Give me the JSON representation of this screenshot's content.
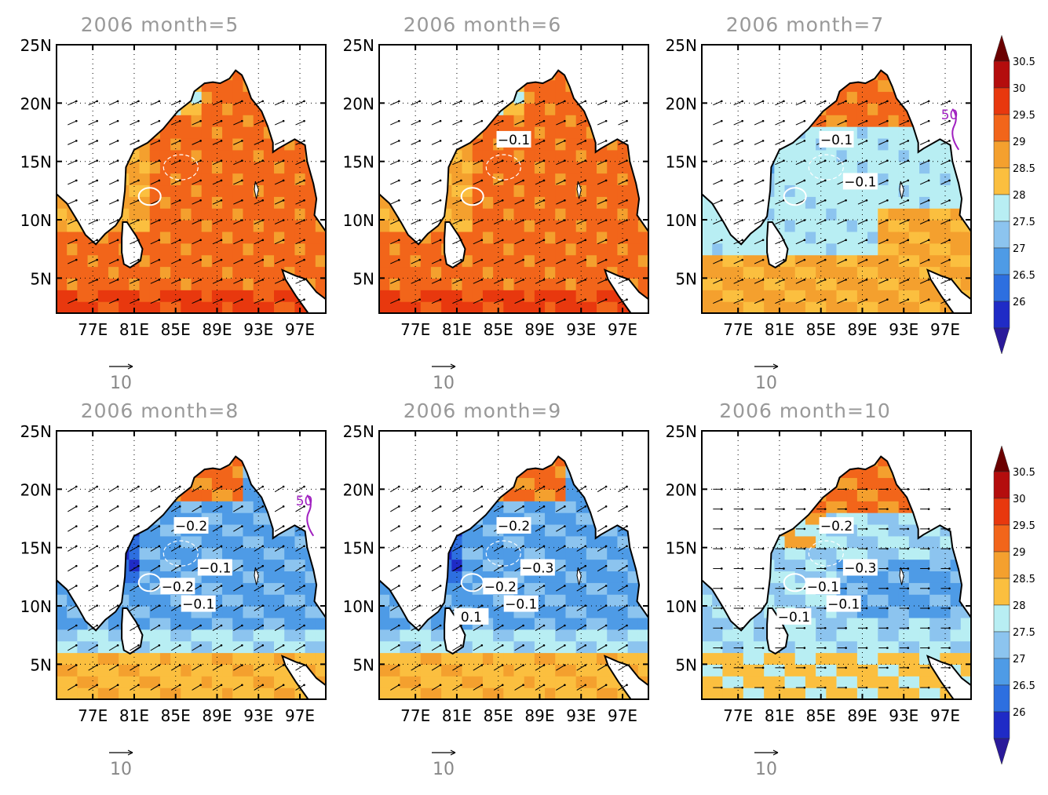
{
  "figure": {
    "panels": [
      {
        "title": "2006  month=5",
        "labels": [],
        "mode": "warm"
      },
      {
        "title": "2006  month=6",
        "labels": [
          "-0.1"
        ],
        "mode": "warm"
      },
      {
        "title": "2006  month=7",
        "labels": [
          "-0.1",
          "-0.1",
          "50"
        ],
        "mode": "mid"
      },
      {
        "title": "2006  month=8",
        "labels": [
          "-0.2",
          "-0.1",
          "-0.2",
          "-0.1",
          "50"
        ],
        "mode": "cool"
      },
      {
        "title": "2006  month=9",
        "labels": [
          "-0.2",
          "-0.3",
          "-0.2",
          "-0.1",
          "0.1"
        ],
        "mode": "cool"
      },
      {
        "title": "2006  month=10",
        "labels": [
          "-0.2",
          "-0.3",
          "-0.1",
          "-0.1",
          "-0.1"
        ],
        "mode": "mix"
      }
    ],
    "y_ticks": [
      "25N",
      "20N",
      "15N",
      "10N",
      "5N"
    ],
    "x_ticks": [
      "77E",
      "81E",
      "85E",
      "89E",
      "93E",
      "97E"
    ],
    "vector_ref_label": "10",
    "colorbar": {
      "levels": [
        "30.5",
        "30",
        "29.5",
        "29",
        "28.5",
        "28",
        "27.5",
        "27",
        "26.5",
        "26"
      ],
      "colors": [
        "#6b0000",
        "#b40d0d",
        "#e8380e",
        "#f2651a",
        "#f4a02e",
        "#fbbf3f",
        "#b8eef3",
        "#8cc4ef",
        "#4e9be6",
        "#2d6fe0",
        "#1f2bc6",
        "#2a1a9a"
      ]
    },
    "colors": {
      "land": "#ffffff",
      "coast": "#000000",
      "contour_white": "#ffffff",
      "contour_purple": "#a020c0",
      "title_gray": "#999999"
    }
  }
}
